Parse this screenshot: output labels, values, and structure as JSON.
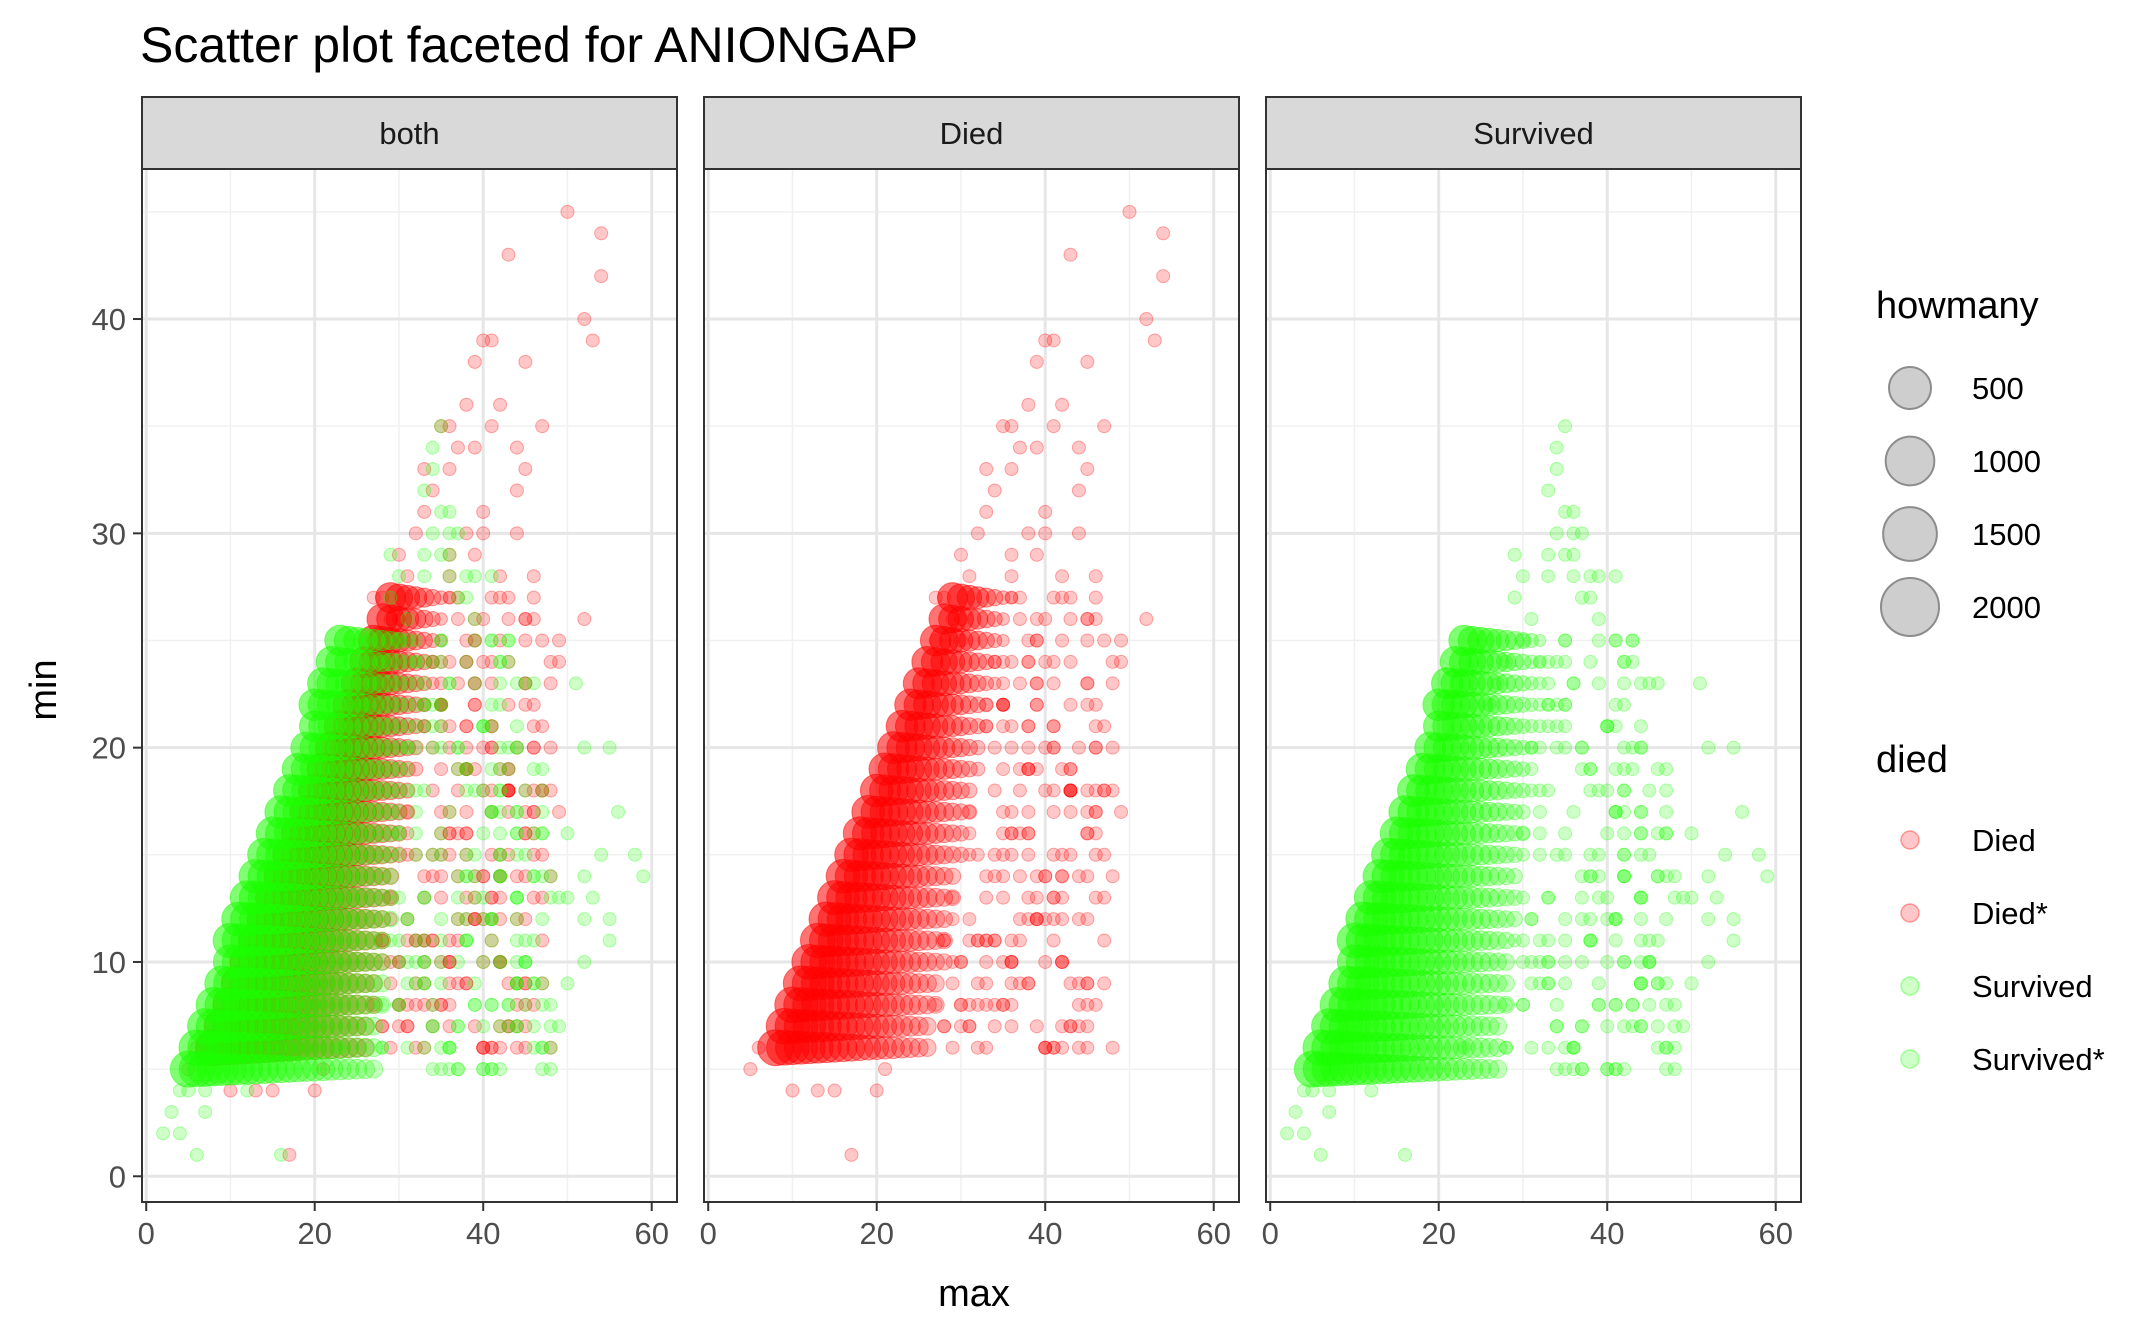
{
  "chart_data": {
    "type": "scatter",
    "title": "Scatter plot faceted for ANIONGAP",
    "xlabel": "max",
    "ylabel": "min",
    "xlim": [
      -0.5,
      63
    ],
    "ylim": [
      -1.2,
      47
    ],
    "x_ticks": [
      0,
      20,
      40,
      60
    ],
    "y_ticks": [
      0,
      10,
      20,
      30,
      40
    ],
    "grid": true,
    "facets": [
      "both",
      "Died",
      "Survived"
    ],
    "legend": {
      "placement": "right",
      "size_title": "howmany",
      "size_breaks": [
        500,
        1000,
        1500,
        2000
      ],
      "color_title": "died",
      "color_entries": [
        "Died",
        "Died*",
        "Survived",
        "Survived*"
      ]
    },
    "colors": {
      "Died": "#ff0000",
      "Died*": "#ff0000",
      "Survived": "#1aff00",
      "Survived*": "#1aff00",
      "size_key": "#a6a6a6"
    },
    "series": [
      {
        "name": "Died",
        "dense_region": {
          "min_y": 6,
          "max_y": 27,
          "lower_edge_at_min5": 7,
          "lower_slope": 0.5,
          "spread_at_low": 8,
          "spread_at_high": 3
        },
        "points": [
          [
            17,
            1
          ],
          [
            10,
            4
          ],
          [
            13,
            4
          ],
          [
            15,
            4
          ],
          [
            20,
            4
          ],
          [
            5,
            5
          ],
          [
            6,
            6
          ],
          [
            21,
            5
          ],
          [
            31,
            8
          ],
          [
            28,
            7
          ],
          [
            33,
            11
          ],
          [
            40,
            12
          ],
          [
            40,
            14
          ],
          [
            35,
            15
          ],
          [
            37,
            18
          ],
          [
            47,
            18
          ],
          [
            48,
            18
          ],
          [
            46,
            18
          ],
          [
            45,
            18
          ],
          [
            40,
            20
          ],
          [
            39,
            22
          ],
          [
            46,
            20
          ],
          [
            46,
            22
          ],
          [
            35,
            24
          ],
          [
            41,
            24
          ],
          [
            30,
            26
          ],
          [
            40,
            26
          ],
          [
            42,
            28
          ],
          [
            46,
            28
          ],
          [
            52,
            26
          ],
          [
            36,
            28
          ],
          [
            36,
            29
          ],
          [
            44,
            30
          ],
          [
            40,
            31
          ],
          [
            45,
            33
          ],
          [
            36,
            33
          ],
          [
            39,
            34
          ],
          [
            37,
            34
          ],
          [
            41,
            35
          ],
          [
            47,
            35
          ],
          [
            44,
            34
          ],
          [
            38,
            36
          ],
          [
            42,
            36
          ],
          [
            40,
            39
          ],
          [
            41,
            39
          ],
          [
            39,
            38
          ],
          [
            45,
            38
          ],
          [
            43,
            43
          ],
          [
            50,
            45
          ],
          [
            54,
            44
          ],
          [
            54,
            42
          ],
          [
            52,
            40
          ],
          [
            53,
            39
          ],
          [
            33,
            33
          ],
          [
            35,
            35
          ],
          [
            36,
            35
          ],
          [
            34,
            32
          ],
          [
            32,
            30
          ],
          [
            33,
            31
          ],
          [
            44,
            32
          ],
          [
            38,
            30
          ],
          [
            40,
            30
          ],
          [
            39,
            29
          ],
          [
            30,
            29
          ],
          [
            31,
            28
          ],
          [
            27,
            27
          ],
          [
            28,
            27
          ],
          [
            29,
            26
          ],
          [
            30,
            25
          ],
          [
            27,
            25
          ],
          [
            34,
            24
          ],
          [
            35,
            23
          ],
          [
            33,
            22
          ],
          [
            36,
            21
          ],
          [
            38,
            19
          ],
          [
            38,
            17
          ],
          [
            37,
            16
          ],
          [
            36,
            15
          ],
          [
            34,
            14
          ],
          [
            31,
            12
          ],
          [
            32,
            11
          ],
          [
            30,
            10
          ],
          [
            29,
            9
          ],
          [
            27,
            8
          ]
        ]
      },
      {
        "name": "Survived",
        "dense_region": {
          "min_y": 5,
          "max_y": 25,
          "lower_edge_at_min5": 5,
          "lower_slope": 0.55,
          "spread_at_low": 10,
          "spread_at_high": 4
        },
        "points": [
          [
            2,
            2
          ],
          [
            4,
            2
          ],
          [
            6,
            1
          ],
          [
            16,
            1
          ],
          [
            3,
            3
          ],
          [
            7,
            3
          ],
          [
            4,
            4
          ],
          [
            5,
            4
          ],
          [
            7,
            4
          ],
          [
            12,
            4
          ],
          [
            23,
            6
          ],
          [
            30,
            8
          ],
          [
            39,
            8
          ],
          [
            40,
            10
          ],
          [
            45,
            10
          ],
          [
            50,
            9
          ],
          [
            52,
            10
          ],
          [
            55,
            11
          ],
          [
            55,
            12
          ],
          [
            53,
            13
          ],
          [
            52,
            14
          ],
          [
            54,
            15
          ],
          [
            58,
            15
          ],
          [
            59,
            14
          ],
          [
            56,
            17
          ],
          [
            50,
            16
          ],
          [
            48,
            14
          ],
          [
            49,
            13
          ],
          [
            46,
            14
          ],
          [
            44,
            15
          ],
          [
            41,
            17
          ],
          [
            42,
            19
          ],
          [
            44,
            20
          ],
          [
            55,
            20
          ],
          [
            52,
            20
          ],
          [
            51,
            23
          ],
          [
            46,
            23
          ],
          [
            43,
            24
          ],
          [
            42,
            22
          ],
          [
            40,
            21
          ],
          [
            41,
            25
          ],
          [
            39,
            26
          ],
          [
            38,
            27
          ],
          [
            37,
            27
          ],
          [
            36,
            28
          ],
          [
            38,
            28
          ],
          [
            36,
            29
          ],
          [
            41,
            28
          ],
          [
            39,
            28
          ],
          [
            35,
            29
          ],
          [
            36,
            30
          ],
          [
            37,
            30
          ],
          [
            34,
            30
          ],
          [
            35,
            31
          ],
          [
            36,
            31
          ],
          [
            33,
            32
          ],
          [
            34,
            33
          ],
          [
            35,
            35
          ],
          [
            34,
            34
          ],
          [
            33,
            28
          ],
          [
            36,
            23
          ],
          [
            34,
            21
          ],
          [
            35,
            20
          ],
          [
            33,
            24
          ],
          [
            30,
            25
          ],
          [
            31,
            26
          ],
          [
            29,
            27
          ],
          [
            30,
            28
          ],
          [
            29,
            29
          ],
          [
            33,
            29
          ],
          [
            26,
            22
          ],
          [
            27,
            23
          ],
          [
            28,
            24
          ],
          [
            40,
            18
          ],
          [
            42,
            18
          ],
          [
            46,
            16
          ],
          [
            47,
            12
          ],
          [
            50,
            13
          ],
          [
            52,
            12
          ],
          [
            45,
            11
          ],
          [
            44,
            9
          ],
          [
            37,
            7
          ],
          [
            37,
            10
          ],
          [
            38,
            11
          ]
        ]
      }
    ]
  }
}
